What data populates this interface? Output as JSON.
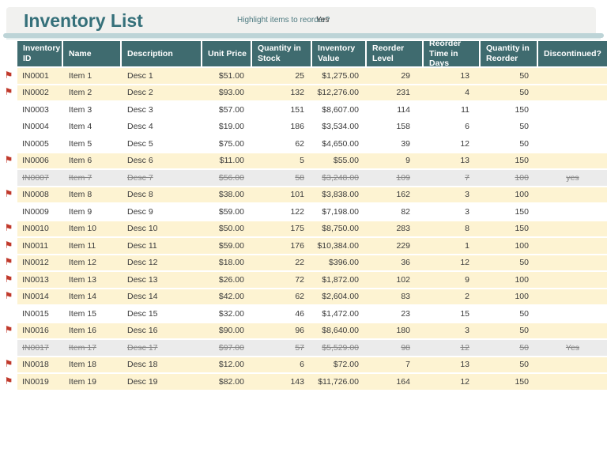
{
  "title": "Inventory List",
  "toolbar": {
    "highlight_label": "Highlight items to reorder?",
    "highlight_value": "Yes"
  },
  "icons": {
    "flag": "⚑"
  },
  "colors": {
    "header_bg": "#3f6b6f",
    "title_text": "#35707a",
    "accent_band": "#bdd4d7",
    "reorder_highlight": "#fdf3d2",
    "discontinued_bg": "#ebebeb",
    "flag_red": "#c0392b"
  },
  "table": {
    "columns": [
      {
        "key": "inventory_id",
        "label": "Inventory ID",
        "align": "left"
      },
      {
        "key": "name",
        "label": "Name",
        "align": "left"
      },
      {
        "key": "description",
        "label": "Description",
        "align": "left"
      },
      {
        "key": "unit_price",
        "label": "Unit Price",
        "align": "right"
      },
      {
        "key": "quantity_in_stock",
        "label": "Quantity in Stock",
        "align": "right"
      },
      {
        "key": "inventory_value",
        "label": "Inventory Value",
        "align": "right"
      },
      {
        "key": "reorder_level",
        "label": "Reorder Level",
        "align": "right"
      },
      {
        "key": "reorder_time_in_days",
        "label": "Reorder Time in Days",
        "align": "right"
      },
      {
        "key": "quantity_in_reorder",
        "label": "Quantity in Reorder",
        "align": "right"
      },
      {
        "key": "discontinued",
        "label": "Discontinued?",
        "align": "center"
      }
    ],
    "rows": [
      {
        "flagged": true,
        "state": "reorder",
        "inventory_id": "IN0001",
        "name": "Item 1",
        "description": "Desc 1",
        "unit_price": "$51.00",
        "quantity_in_stock": "25",
        "inventory_value": "$1,275.00",
        "reorder_level": "29",
        "reorder_time_in_days": "13",
        "quantity_in_reorder": "50",
        "discontinued": ""
      },
      {
        "flagged": true,
        "state": "reorder",
        "inventory_id": "IN0002",
        "name": "Item 2",
        "description": "Desc 2",
        "unit_price": "$93.00",
        "quantity_in_stock": "132",
        "inventory_value": "$12,276.00",
        "reorder_level": "231",
        "reorder_time_in_days": "4",
        "quantity_in_reorder": "50",
        "discontinued": ""
      },
      {
        "flagged": false,
        "state": "normal",
        "inventory_id": "IN0003",
        "name": "Item 3",
        "description": "Desc 3",
        "unit_price": "$57.00",
        "quantity_in_stock": "151",
        "inventory_value": "$8,607.00",
        "reorder_level": "114",
        "reorder_time_in_days": "11",
        "quantity_in_reorder": "150",
        "discontinued": ""
      },
      {
        "flagged": false,
        "state": "normal",
        "inventory_id": "IN0004",
        "name": "Item 4",
        "description": "Desc 4",
        "unit_price": "$19.00",
        "quantity_in_stock": "186",
        "inventory_value": "$3,534.00",
        "reorder_level": "158",
        "reorder_time_in_days": "6",
        "quantity_in_reorder": "50",
        "discontinued": ""
      },
      {
        "flagged": false,
        "state": "normal",
        "inventory_id": "IN0005",
        "name": "Item 5",
        "description": "Desc 5",
        "unit_price": "$75.00",
        "quantity_in_stock": "62",
        "inventory_value": "$4,650.00",
        "reorder_level": "39",
        "reorder_time_in_days": "12",
        "quantity_in_reorder": "50",
        "discontinued": ""
      },
      {
        "flagged": true,
        "state": "reorder",
        "inventory_id": "IN0006",
        "name": "Item 6",
        "description": "Desc 6",
        "unit_price": "$11.00",
        "quantity_in_stock": "5",
        "inventory_value": "$55.00",
        "reorder_level": "9",
        "reorder_time_in_days": "13",
        "quantity_in_reorder": "150",
        "discontinued": ""
      },
      {
        "flagged": false,
        "state": "discontinued",
        "inventory_id": "IN0007",
        "name": "Item 7",
        "description": "Desc 7",
        "unit_price": "$56.00",
        "quantity_in_stock": "58",
        "inventory_value": "$3,248.00",
        "reorder_level": "109",
        "reorder_time_in_days": "7",
        "quantity_in_reorder": "100",
        "discontinued": "yes"
      },
      {
        "flagged": true,
        "state": "reorder",
        "inventory_id": "IN0008",
        "name": "Item 8",
        "description": "Desc 8",
        "unit_price": "$38.00",
        "quantity_in_stock": "101",
        "inventory_value": "$3,838.00",
        "reorder_level": "162",
        "reorder_time_in_days": "3",
        "quantity_in_reorder": "100",
        "discontinued": ""
      },
      {
        "flagged": false,
        "state": "normal",
        "inventory_id": "IN0009",
        "name": "Item 9",
        "description": "Desc 9",
        "unit_price": "$59.00",
        "quantity_in_stock": "122",
        "inventory_value": "$7,198.00",
        "reorder_level": "82",
        "reorder_time_in_days": "3",
        "quantity_in_reorder": "150",
        "discontinued": ""
      },
      {
        "flagged": true,
        "state": "reorder",
        "inventory_id": "IN0010",
        "name": "Item 10",
        "description": "Desc 10",
        "unit_price": "$50.00",
        "quantity_in_stock": "175",
        "inventory_value": "$8,750.00",
        "reorder_level": "283",
        "reorder_time_in_days": "8",
        "quantity_in_reorder": "150",
        "discontinued": ""
      },
      {
        "flagged": true,
        "state": "reorder",
        "inventory_id": "IN0011",
        "name": "Item 11",
        "description": "Desc 11",
        "unit_price": "$59.00",
        "quantity_in_stock": "176",
        "inventory_value": "$10,384.00",
        "reorder_level": "229",
        "reorder_time_in_days": "1",
        "quantity_in_reorder": "100",
        "discontinued": ""
      },
      {
        "flagged": true,
        "state": "reorder",
        "inventory_id": "IN0012",
        "name": "Item 12",
        "description": "Desc 12",
        "unit_price": "$18.00",
        "quantity_in_stock": "22",
        "inventory_value": "$396.00",
        "reorder_level": "36",
        "reorder_time_in_days": "12",
        "quantity_in_reorder": "50",
        "discontinued": ""
      },
      {
        "flagged": true,
        "state": "reorder",
        "inventory_id": "IN0013",
        "name": "Item 13",
        "description": "Desc 13",
        "unit_price": "$26.00",
        "quantity_in_stock": "72",
        "inventory_value": "$1,872.00",
        "reorder_level": "102",
        "reorder_time_in_days": "9",
        "quantity_in_reorder": "100",
        "discontinued": ""
      },
      {
        "flagged": true,
        "state": "reorder",
        "inventory_id": "IN0014",
        "name": "Item 14",
        "description": "Desc 14",
        "unit_price": "$42.00",
        "quantity_in_stock": "62",
        "inventory_value": "$2,604.00",
        "reorder_level": "83",
        "reorder_time_in_days": "2",
        "quantity_in_reorder": "100",
        "discontinued": ""
      },
      {
        "flagged": false,
        "state": "normal",
        "inventory_id": "IN0015",
        "name": "Item 15",
        "description": "Desc 15",
        "unit_price": "$32.00",
        "quantity_in_stock": "46",
        "inventory_value": "$1,472.00",
        "reorder_level": "23",
        "reorder_time_in_days": "15",
        "quantity_in_reorder": "50",
        "discontinued": ""
      },
      {
        "flagged": true,
        "state": "reorder",
        "inventory_id": "IN0016",
        "name": "Item 16",
        "description": "Desc 16",
        "unit_price": "$90.00",
        "quantity_in_stock": "96",
        "inventory_value": "$8,640.00",
        "reorder_level": "180",
        "reorder_time_in_days": "3",
        "quantity_in_reorder": "50",
        "discontinued": ""
      },
      {
        "flagged": false,
        "state": "discontinued",
        "inventory_id": "IN0017",
        "name": "Item 17",
        "description": "Desc 17",
        "unit_price": "$97.00",
        "quantity_in_stock": "57",
        "inventory_value": "$5,529.00",
        "reorder_level": "98",
        "reorder_time_in_days": "12",
        "quantity_in_reorder": "50",
        "discontinued": "Yes"
      },
      {
        "flagged": true,
        "state": "reorder",
        "inventory_id": "IN0018",
        "name": "Item 18",
        "description": "Desc 18",
        "unit_price": "$12.00",
        "quantity_in_stock": "6",
        "inventory_value": "$72.00",
        "reorder_level": "7",
        "reorder_time_in_days": "13",
        "quantity_in_reorder": "50",
        "discontinued": ""
      },
      {
        "flagged": true,
        "state": "reorder",
        "inventory_id": "IN0019",
        "name": "Item 19",
        "description": "Desc 19",
        "unit_price": "$82.00",
        "quantity_in_stock": "143",
        "inventory_value": "$11,726.00",
        "reorder_level": "164",
        "reorder_time_in_days": "12",
        "quantity_in_reorder": "150",
        "discontinued": ""
      }
    ]
  }
}
